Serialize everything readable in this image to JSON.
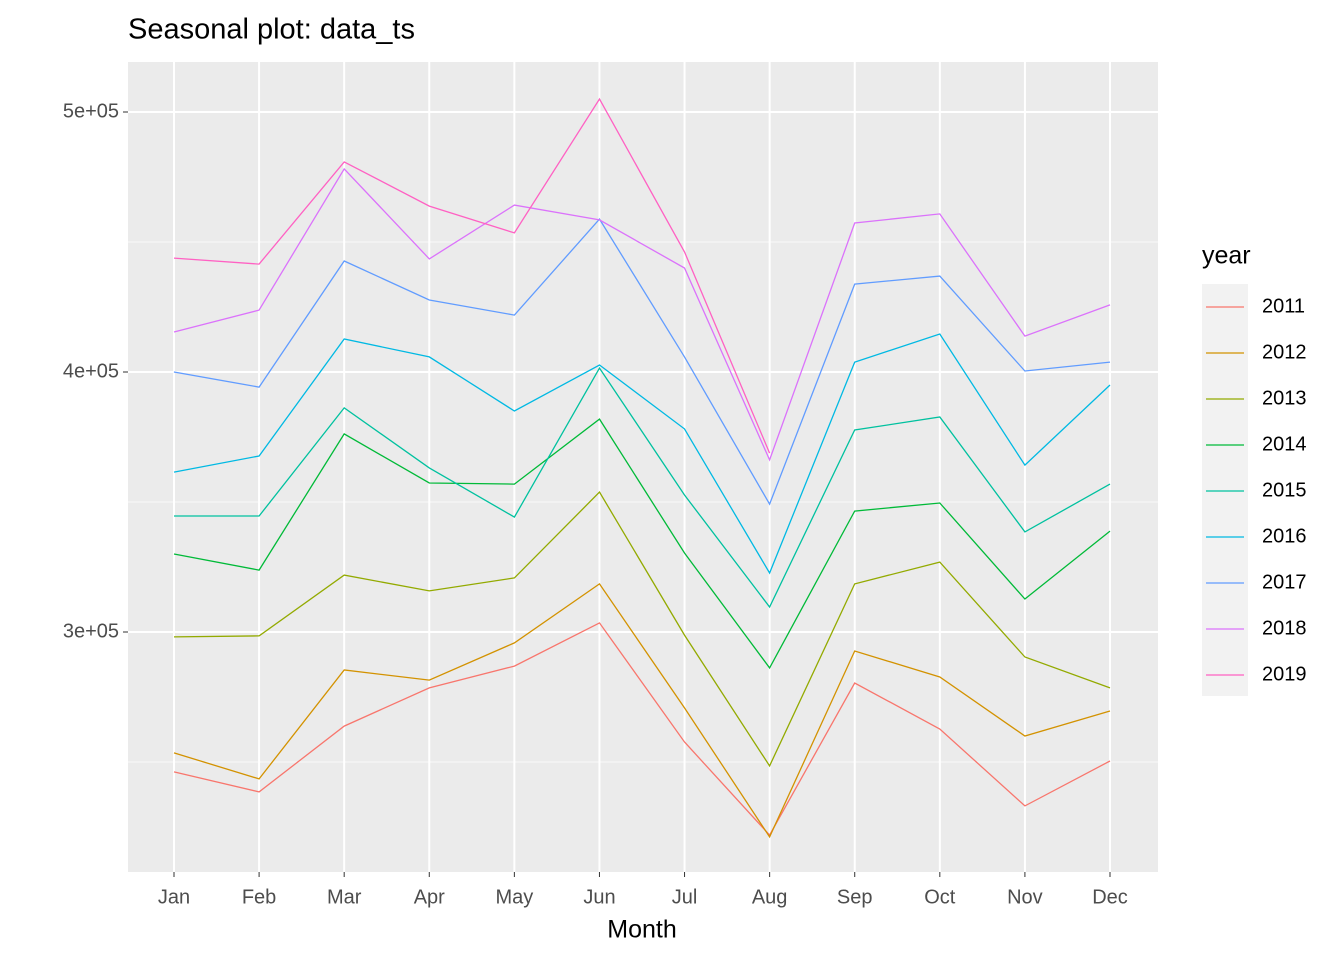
{
  "chart_data": {
    "type": "line",
    "title": "Seasonal plot: data_ts",
    "x_label": "Month",
    "legend_title": "year",
    "categories": [
      "Jan",
      "Feb",
      "Mar",
      "Apr",
      "May",
      "Jun",
      "Jul",
      "Aug",
      "Sep",
      "Oct",
      "Nov",
      "Dec"
    ],
    "ylim": [
      207692,
      519231
    ],
    "yticks": [
      {
        "value": 300000,
        "label": "3e+05"
      },
      {
        "value": 400000,
        "label": "4e+05"
      },
      {
        "value": 500000,
        "label": "5e+05"
      }
    ],
    "grid": true,
    "legend_position": "right",
    "series": [
      {
        "name": "2011",
        "color": "#F8766D",
        "values": [
          246200,
          238500,
          263800,
          278500,
          286900,
          303500,
          257700,
          221900,
          280400,
          262700,
          233100,
          250400
        ]
      },
      {
        "name": "2012",
        "color": "#D39200",
        "values": [
          253500,
          243500,
          285400,
          281500,
          295800,
          318500,
          270800,
          221200,
          292700,
          282700,
          260000,
          269600
        ]
      },
      {
        "name": "2013",
        "color": "#93AA00",
        "values": [
          298100,
          298500,
          321900,
          315800,
          320800,
          353800,
          298800,
          248500,
          318500,
          326900,
          290400,
          278500
        ]
      },
      {
        "name": "2014",
        "color": "#00BA38",
        "values": [
          330000,
          323800,
          376200,
          357300,
          356900,
          381900,
          330400,
          286200,
          346500,
          349600,
          312700,
          338800
        ]
      },
      {
        "name": "2015",
        "color": "#00C19F",
        "values": [
          344600,
          344600,
          386200,
          363100,
          344200,
          401500,
          352700,
          309600,
          377700,
          382700,
          338500,
          356900
        ]
      },
      {
        "name": "2016",
        "color": "#00B9E3",
        "values": [
          361500,
          367700,
          412700,
          405800,
          385000,
          402700,
          378100,
          322700,
          403800,
          414600,
          364200,
          395000
        ]
      },
      {
        "name": "2017",
        "color": "#619CFF",
        "values": [
          400000,
          394200,
          442700,
          427700,
          421900,
          458800,
          405800,
          349200,
          433800,
          436900,
          400400,
          403800
        ]
      },
      {
        "name": "2018",
        "color": "#DB72FB",
        "values": [
          415400,
          423800,
          478100,
          443500,
          464200,
          458500,
          440000,
          366200,
          457300,
          460800,
          413800,
          425800
        ]
      },
      {
        "name": "2019",
        "color": "#FF61C3",
        "values": [
          443800,
          441500,
          480800,
          463800,
          453500,
          505000,
          446200,
          368800,
          null,
          null,
          null,
          null
        ]
      }
    ]
  }
}
